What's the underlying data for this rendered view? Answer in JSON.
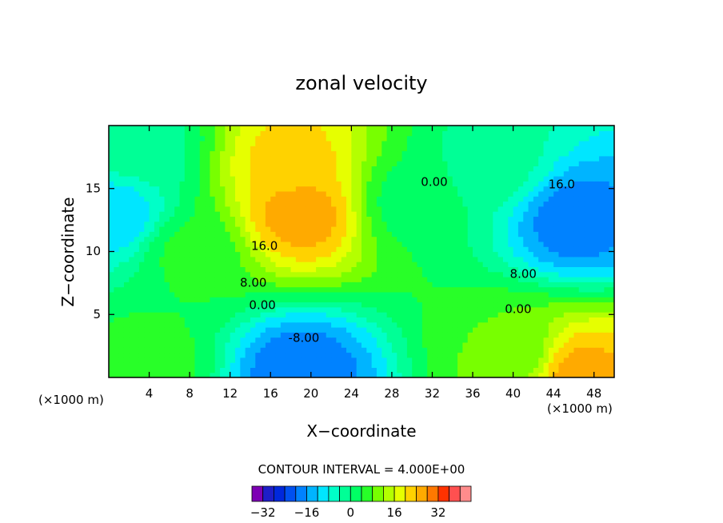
{
  "chart_data": {
    "type": "heatmap",
    "title": "zonal velocity",
    "xlabel": "X−coordinate",
    "ylabel": "Z−coordinate",
    "x_units": "(×1000 m)",
    "xlim": [
      0,
      50
    ],
    "ylim": [
      0,
      20
    ],
    "x_ticks": [
      "4",
      "8",
      "12",
      "16",
      "20",
      "24",
      "28",
      "32",
      "36",
      "40",
      "44",
      "48"
    ],
    "y_ticks": [
      "5",
      "10",
      "15"
    ],
    "contour_interval_label": "CONTOUR INTERVAL = 4.000E+00",
    "contour_labels": [
      {
        "text": "16.0",
        "x": 15.4,
        "y": 10.4
      },
      {
        "text": "8.00",
        "x": 14.3,
        "y": 7.5
      },
      {
        "text": "0.00",
        "x": 15.2,
        "y": 5.7
      },
      {
        "text": "-8.00",
        "x": 19.3,
        "y": 3.1
      },
      {
        "text": "0.00",
        "x": 32.2,
        "y": 15.5
      },
      {
        "text": "16.0",
        "x": 44.8,
        "y": 15.3
      },
      {
        "text": "8.00",
        "x": 41.0,
        "y": 8.2
      },
      {
        "text": "0.00",
        "x": 40.5,
        "y": 5.4
      }
    ],
    "colorbar": {
      "levels": [
        -36,
        -32,
        -28,
        -24,
        -20,
        -16,
        -12,
        -8,
        -4,
        0,
        4,
        8,
        12,
        16,
        20,
        24,
        28,
        32,
        36,
        40
      ],
      "tick_labels": [
        "−32",
        "−16",
        "0",
        "16",
        "32"
      ],
      "tick_values": [
        -32,
        -16,
        0,
        16,
        32
      ],
      "colors": [
        "#7d00b4",
        "#1e1ec8",
        "#0028dc",
        "#0050f0",
        "#0082ff",
        "#00b4ff",
        "#00e6ff",
        "#00ffc8",
        "#00ff96",
        "#00ff64",
        "#28ff28",
        "#78ff00",
        "#b4ff00",
        "#e6ff00",
        "#ffd200",
        "#ffaa00",
        "#ff7800",
        "#ff3200",
        "#ff5050",
        "#ff8c8c"
      ]
    },
    "features": [
      {
        "x": 18,
        "y": 17,
        "value": 22
      },
      {
        "x": 19,
        "y": 13,
        "value": 27
      },
      {
        "x": 46,
        "y": 12.5,
        "value": -19
      },
      {
        "x": 0.5,
        "y": 13,
        "value": -12
      },
      {
        "x": 19,
        "y": 0.5,
        "value": -20
      },
      {
        "x": 46.5,
        "y": 0.3,
        "value": 26
      },
      {
        "x": 8,
        "y": 10,
        "value": 5
      },
      {
        "x": 30,
        "y": 14,
        "value": 2
      },
      {
        "x": 38,
        "y": 17,
        "value": -2
      },
      {
        "x": 4,
        "y": 1,
        "value": 6
      },
      {
        "x": 40,
        "y": 2,
        "value": 8
      },
      {
        "x": 3,
        "y": 18,
        "value": -2
      }
    ]
  }
}
